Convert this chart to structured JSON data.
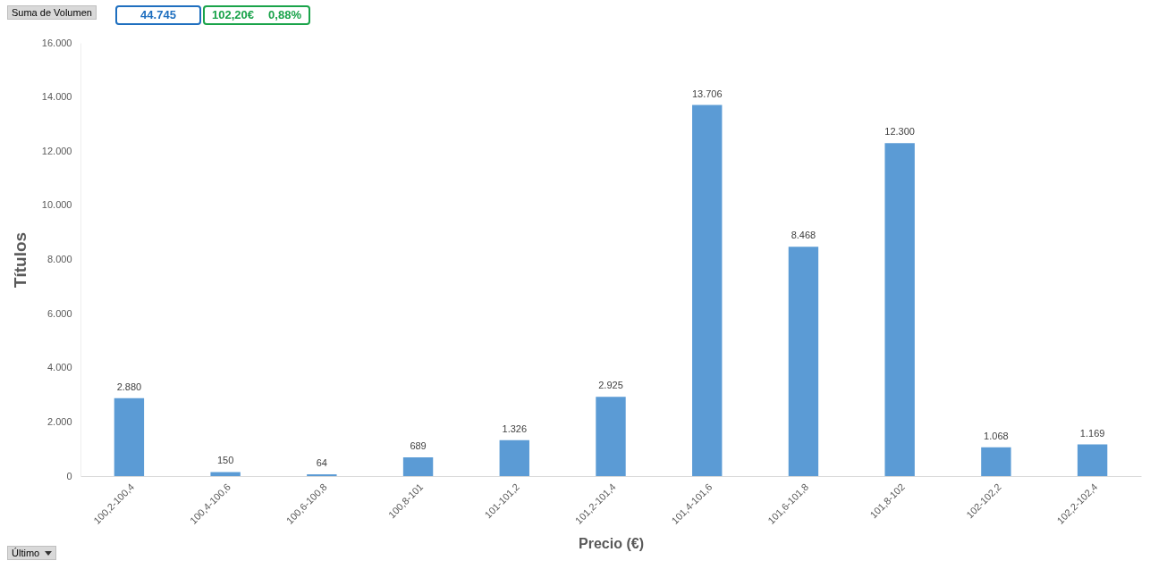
{
  "chart_data": {
    "type": "bar",
    "xlabel": "Precio (€)",
    "ylabel": "Títulos",
    "categories": [
      "100,2-100,4",
      "100,4-100,6",
      "100,6-100,8",
      "100,8-101",
      "101-101,2",
      "101,2-101,4",
      "101,4-101,6",
      "101,6-101,8",
      "101,8-102",
      "102-102,2",
      "102,2-102,4"
    ],
    "values": [
      2880,
      150,
      64,
      689,
      1326,
      2925,
      13706,
      8468,
      12300,
      1068,
      1169
    ],
    "value_labels": [
      "2.880",
      "150",
      "64",
      "689",
      "1.326",
      "2.925",
      "13.706",
      "8.468",
      "12.300",
      "1.068",
      "1.169"
    ],
    "color": "#5b9bd5",
    "ylim": [
      0,
      16000
    ],
    "yticks": [
      {
        "value": 0,
        "label": "0"
      },
      {
        "value": 2000,
        "label": "2.000"
      },
      {
        "value": 4000,
        "label": "4.000"
      },
      {
        "value": 6000,
        "label": "6.000"
      },
      {
        "value": 8000,
        "label": "8.000"
      },
      {
        "value": 10000,
        "label": "10.000"
      },
      {
        "value": 12000,
        "label": "12.000"
      },
      {
        "value": 14000,
        "label": "14.000"
      },
      {
        "value": 16000,
        "label": "16.000"
      }
    ],
    "grid": false,
    "annotations": [
      "Suma de Volumen",
      "44.745",
      "102,20€",
      "0,88%",
      "Último"
    ]
  }
}
